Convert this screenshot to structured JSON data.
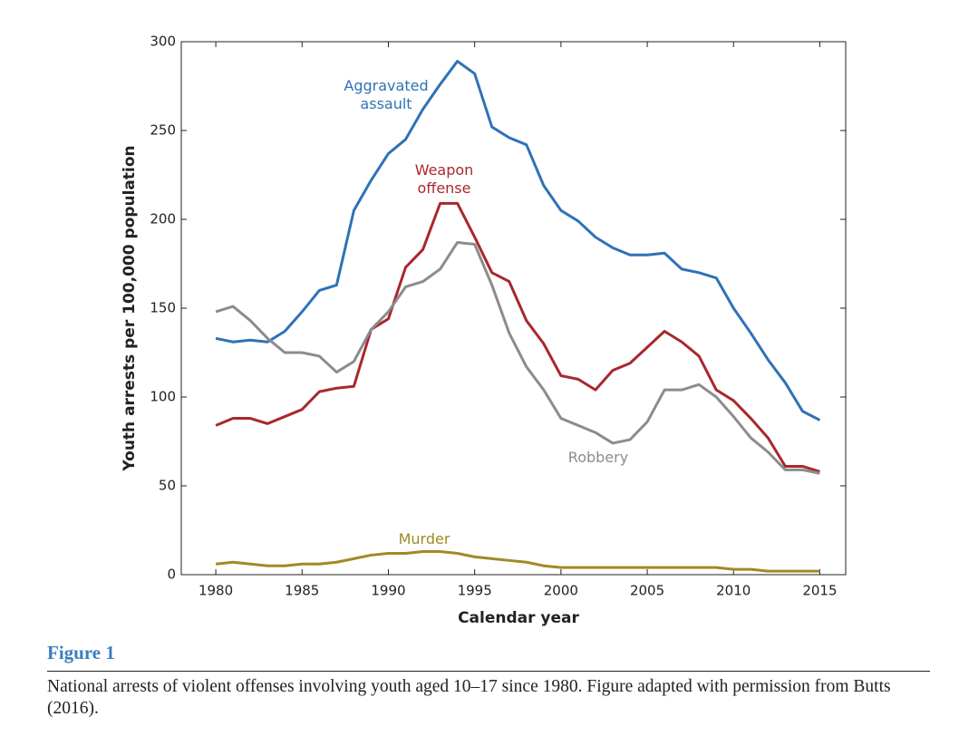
{
  "chart_data": {
    "type": "line",
    "xlabel": "Calendar year",
    "ylabel": "Youth arrests per 100,000 population",
    "x": [
      1980,
      1981,
      1982,
      1983,
      1984,
      1985,
      1986,
      1987,
      1988,
      1989,
      1990,
      1991,
      1992,
      1993,
      1994,
      1995,
      1996,
      1997,
      1998,
      1999,
      2000,
      2001,
      2002,
      2003,
      2004,
      2005,
      2006,
      2007,
      2008,
      2009,
      2010,
      2011,
      2012,
      2013,
      2014,
      2015
    ],
    "xlim": [
      1978,
      2016.5
    ],
    "xticks": [
      1980,
      1985,
      1990,
      1995,
      2000,
      2005,
      2010,
      2015
    ],
    "ylim": [
      0,
      300
    ],
    "yticks": [
      0,
      50,
      100,
      150,
      200,
      250,
      300
    ],
    "grid": false,
    "series": [
      {
        "name": "Aggravated assault",
        "color": "#2f72b6",
        "values": [
          133,
          131,
          132,
          131,
          137,
          148,
          160,
          163,
          205,
          222,
          237,
          245,
          262,
          276,
          289,
          282,
          252,
          246,
          242,
          219,
          205,
          199,
          190,
          184,
          180,
          180,
          181,
          172,
          170,
          167,
          150,
          136,
          121,
          108,
          92,
          87
        ]
      },
      {
        "name": "Weapon offense",
        "color": "#a8282e",
        "values": [
          84,
          88,
          88,
          85,
          89,
          93,
          103,
          105,
          106,
          138,
          144,
          173,
          183,
          209,
          209,
          190,
          170,
          165,
          143,
          130,
          112,
          110,
          104,
          115,
          119,
          128,
          137,
          131,
          123,
          104,
          98,
          88,
          77,
          61,
          61,
          58
        ]
      },
      {
        "name": "Robbery",
        "color": "#8c8c8c",
        "values": [
          148,
          151,
          143,
          133,
          125,
          125,
          123,
          114,
          120,
          138,
          148,
          162,
          165,
          172,
          187,
          186,
          163,
          136,
          117,
          104,
          88,
          84,
          80,
          74,
          76,
          86,
          104,
          104,
          107,
          100,
          89,
          77,
          69,
          59,
          59,
          57
        ]
      },
      {
        "name": "Murder",
        "color": "#a08a24",
        "values": [
          6,
          7,
          6,
          5,
          5,
          6,
          6,
          7,
          9,
          11,
          12,
          12,
          13,
          13,
          12,
          10,
          9,
          8,
          7,
          5,
          4,
          4,
          4,
          4,
          4,
          4,
          4,
          4,
          4,
          4,
          3,
          3,
          2,
          2,
          2,
          2
        ]
      }
    ]
  },
  "figure": {
    "label": "Figure 1",
    "caption": "National arrests of violent offenses involving youth aged 10–17 since 1980. Figure adapted with permission from Butts (2016)."
  }
}
